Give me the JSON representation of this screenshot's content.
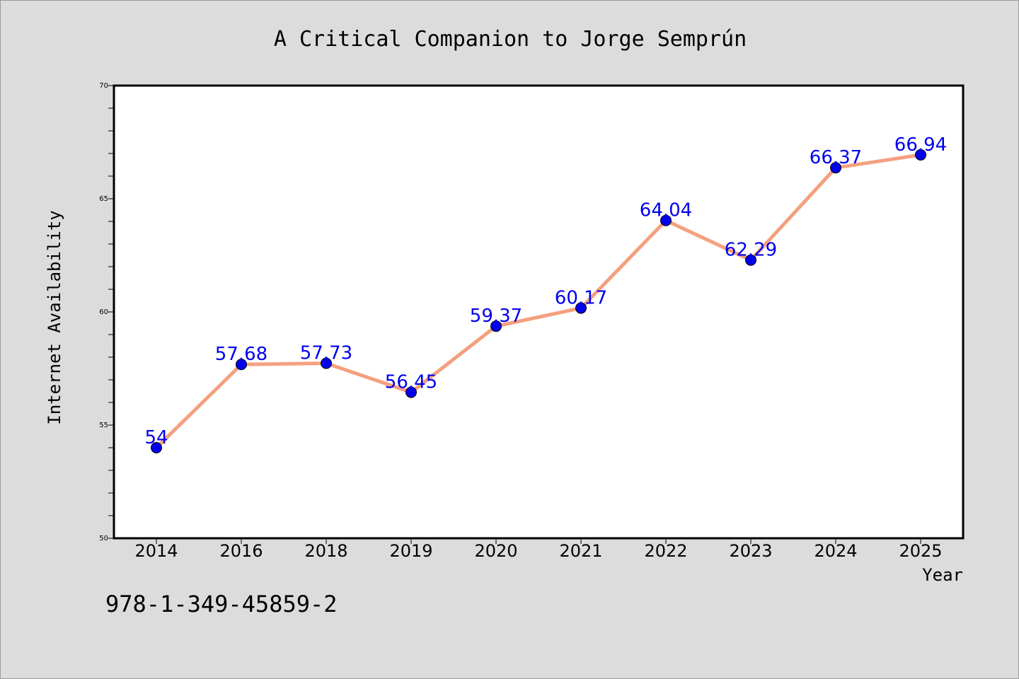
{
  "chart_data": {
    "type": "line",
    "title": "A Critical Companion to Jorge Semprún",
    "xlabel": "Year",
    "ylabel": "Internet Availability",
    "categories": [
      "2014",
      "2016",
      "2018",
      "2019",
      "2020",
      "2021",
      "2022",
      "2023",
      "2024",
      "2025"
    ],
    "series": [
      {
        "values": [
          54,
          57.68,
          57.73,
          56.45,
          59.37,
          60.17,
          64.04,
          62.29,
          66.37,
          66.94
        ],
        "labels": [
          "54",
          "57.68",
          "57.73",
          "56.45",
          "59.37",
          "60.17",
          "64.04",
          "62.29",
          "66.37",
          "66.94"
        ],
        "line_color": "#f4a07f",
        "marker_color": "#0000ee",
        "label_color": "#0000ee"
      }
    ],
    "ylim": [
      50,
      70
    ],
    "yticks": [
      "50",
      "55",
      "60",
      "65",
      "70"
    ],
    "yminor_step": 1,
    "grid": false,
    "legend": "none"
  },
  "annotation": "978-1-349-45859-2",
  "colors": {
    "background": "#dcdcdc",
    "plot_background": "#ffffff",
    "axes": "#000000"
  }
}
